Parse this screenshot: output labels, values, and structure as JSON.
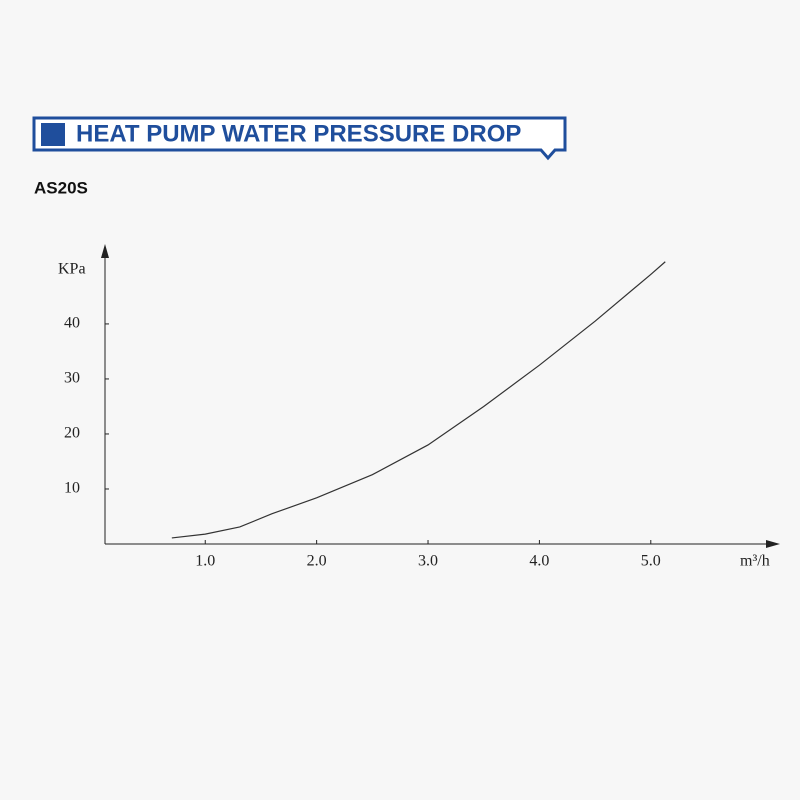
{
  "chart_data": {
    "type": "line",
    "title": "HEAT PUMP WATER PRESSURE  DROP",
    "subtitle": "AS20S",
    "y_label": "KPa",
    "x_label": "m³/h",
    "x": [
      0.7,
      1.0,
      1.31,
      1.6,
      2.0,
      2.5,
      3.0,
      3.5,
      4.0,
      4.5,
      5.0,
      5.13
    ],
    "series": [
      {
        "name": "AS20S",
        "color": "#333333",
        "values": [
          1.1,
          1.8,
          3.1,
          5.5,
          8.4,
          12.6,
          18,
          25,
          32.5,
          40.5,
          49,
          51.3
        ]
      }
    ],
    "xlim": [
      0.1,
      6.16
    ],
    "xticks": [
      {
        "value": 1,
        "label": "1.0"
      },
      {
        "value": 2,
        "label": "2.0"
      },
      {
        "value": 3,
        "label": "3.0"
      },
      {
        "value": 4,
        "label": "4.0"
      },
      {
        "value": 5,
        "label": "5.0"
      }
    ],
    "ylim": [
      0,
      53.8
    ],
    "yticks": [
      10,
      20,
      30,
      40
    ],
    "grid": false
  }
}
